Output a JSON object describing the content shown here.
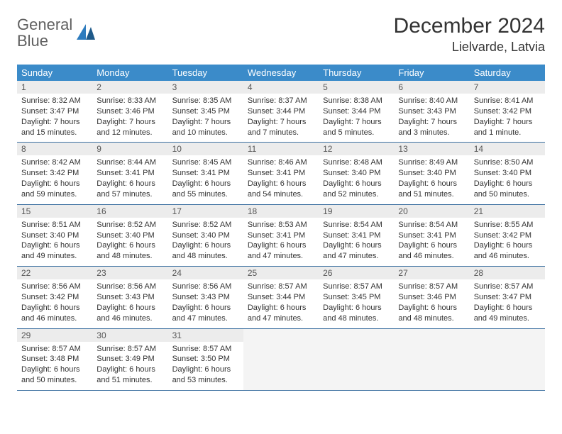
{
  "logo": {
    "text_general": "General",
    "text_blue": "Blue"
  },
  "title": "December 2024",
  "location": "Lielvarde, Latvia",
  "colors": {
    "header_bg": "#3b8bc9",
    "header_text": "#ffffff",
    "daynum_bg": "#ececec",
    "border": "#3b6fa0",
    "logo_gray": "#606060",
    "logo_blue": "#2e7cbe",
    "text": "#333333",
    "background": "#ffffff"
  },
  "weekdays": [
    "Sunday",
    "Monday",
    "Tuesday",
    "Wednesday",
    "Thursday",
    "Friday",
    "Saturday"
  ],
  "weeks": [
    [
      {
        "n": "1",
        "sunrise": "8:32 AM",
        "sunset": "3:47 PM",
        "daylight": "7 hours and 15 minutes."
      },
      {
        "n": "2",
        "sunrise": "8:33 AM",
        "sunset": "3:46 PM",
        "daylight": "7 hours and 12 minutes."
      },
      {
        "n": "3",
        "sunrise": "8:35 AM",
        "sunset": "3:45 PM",
        "daylight": "7 hours and 10 minutes."
      },
      {
        "n": "4",
        "sunrise": "8:37 AM",
        "sunset": "3:44 PM",
        "daylight": "7 hours and 7 minutes."
      },
      {
        "n": "5",
        "sunrise": "8:38 AM",
        "sunset": "3:44 PM",
        "daylight": "7 hours and 5 minutes."
      },
      {
        "n": "6",
        "sunrise": "8:40 AM",
        "sunset": "3:43 PM",
        "daylight": "7 hours and 3 minutes."
      },
      {
        "n": "7",
        "sunrise": "8:41 AM",
        "sunset": "3:42 PM",
        "daylight": "7 hours and 1 minute."
      }
    ],
    [
      {
        "n": "8",
        "sunrise": "8:42 AM",
        "sunset": "3:42 PM",
        "daylight": "6 hours and 59 minutes."
      },
      {
        "n": "9",
        "sunrise": "8:44 AM",
        "sunset": "3:41 PM",
        "daylight": "6 hours and 57 minutes."
      },
      {
        "n": "10",
        "sunrise": "8:45 AM",
        "sunset": "3:41 PM",
        "daylight": "6 hours and 55 minutes."
      },
      {
        "n": "11",
        "sunrise": "8:46 AM",
        "sunset": "3:41 PM",
        "daylight": "6 hours and 54 minutes."
      },
      {
        "n": "12",
        "sunrise": "8:48 AM",
        "sunset": "3:40 PM",
        "daylight": "6 hours and 52 minutes."
      },
      {
        "n": "13",
        "sunrise": "8:49 AM",
        "sunset": "3:40 PM",
        "daylight": "6 hours and 51 minutes."
      },
      {
        "n": "14",
        "sunrise": "8:50 AM",
        "sunset": "3:40 PM",
        "daylight": "6 hours and 50 minutes."
      }
    ],
    [
      {
        "n": "15",
        "sunrise": "8:51 AM",
        "sunset": "3:40 PM",
        "daylight": "6 hours and 49 minutes."
      },
      {
        "n": "16",
        "sunrise": "8:52 AM",
        "sunset": "3:40 PM",
        "daylight": "6 hours and 48 minutes."
      },
      {
        "n": "17",
        "sunrise": "8:52 AM",
        "sunset": "3:40 PM",
        "daylight": "6 hours and 48 minutes."
      },
      {
        "n": "18",
        "sunrise": "8:53 AM",
        "sunset": "3:41 PM",
        "daylight": "6 hours and 47 minutes."
      },
      {
        "n": "19",
        "sunrise": "8:54 AM",
        "sunset": "3:41 PM",
        "daylight": "6 hours and 47 minutes."
      },
      {
        "n": "20",
        "sunrise": "8:54 AM",
        "sunset": "3:41 PM",
        "daylight": "6 hours and 46 minutes."
      },
      {
        "n": "21",
        "sunrise": "8:55 AM",
        "sunset": "3:42 PM",
        "daylight": "6 hours and 46 minutes."
      }
    ],
    [
      {
        "n": "22",
        "sunrise": "8:56 AM",
        "sunset": "3:42 PM",
        "daylight": "6 hours and 46 minutes."
      },
      {
        "n": "23",
        "sunrise": "8:56 AM",
        "sunset": "3:43 PM",
        "daylight": "6 hours and 46 minutes."
      },
      {
        "n": "24",
        "sunrise": "8:56 AM",
        "sunset": "3:43 PM",
        "daylight": "6 hours and 47 minutes."
      },
      {
        "n": "25",
        "sunrise": "8:57 AM",
        "sunset": "3:44 PM",
        "daylight": "6 hours and 47 minutes."
      },
      {
        "n": "26",
        "sunrise": "8:57 AM",
        "sunset": "3:45 PM",
        "daylight": "6 hours and 48 minutes."
      },
      {
        "n": "27",
        "sunrise": "8:57 AM",
        "sunset": "3:46 PM",
        "daylight": "6 hours and 48 minutes."
      },
      {
        "n": "28",
        "sunrise": "8:57 AM",
        "sunset": "3:47 PM",
        "daylight": "6 hours and 49 minutes."
      }
    ],
    [
      {
        "n": "29",
        "sunrise": "8:57 AM",
        "sunset": "3:48 PM",
        "daylight": "6 hours and 50 minutes."
      },
      {
        "n": "30",
        "sunrise": "8:57 AM",
        "sunset": "3:49 PM",
        "daylight": "6 hours and 51 minutes."
      },
      {
        "n": "31",
        "sunrise": "8:57 AM",
        "sunset": "3:50 PM",
        "daylight": "6 hours and 53 minutes."
      },
      null,
      null,
      null,
      null
    ]
  ],
  "labels": {
    "sunrise_prefix": "Sunrise: ",
    "sunset_prefix": "Sunset: ",
    "daylight_prefix": "Daylight: "
  }
}
